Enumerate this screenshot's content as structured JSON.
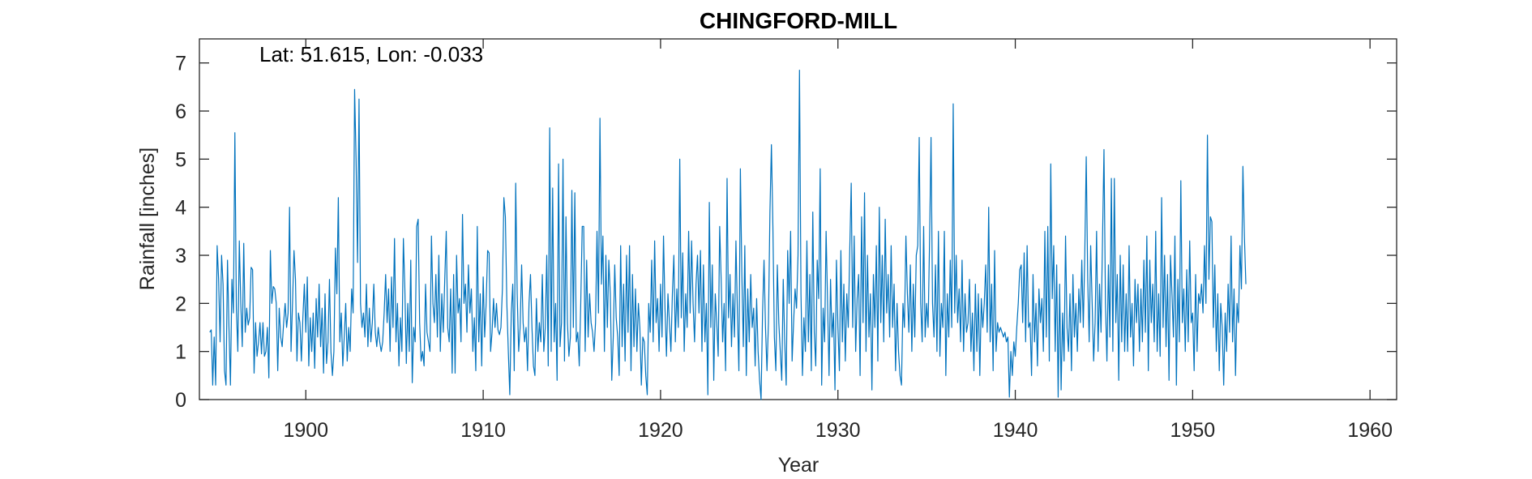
{
  "chart_data": {
    "type": "line",
    "title": "CHINGFORD-MILL",
    "xlabel": "Year",
    "ylabel": "Rainfall [inches]",
    "annotation": "Lat: 51.615, Lon: -0.033",
    "xlim": [
      1894,
      1961.5
    ],
    "ylim": [
      0,
      7.5
    ],
    "xticks": [
      1900,
      1910,
      1920,
      1930,
      1940,
      1950,
      1960
    ],
    "yticks": [
      0,
      1,
      2,
      3,
      4,
      5,
      6,
      7
    ],
    "grid": false,
    "color": "#0072BD",
    "x_start": "1894-08",
    "x_step_months": 1,
    "series": [
      {
        "values": [
          1.4,
          1.45,
          0.3,
          1.3,
          0.3,
          3.2,
          2.5,
          1.2,
          3.0,
          2.4,
          0.6,
          0.3,
          2.9,
          1.5,
          0.3,
          2.5,
          1.8,
          5.55,
          1.9,
          1.0,
          3.3,
          2.0,
          1.1,
          3.25,
          1.4,
          1.9,
          1.55,
          1.7,
          2.75,
          2.7,
          0.55,
          1.6,
          0.9,
          1.2,
          1.6,
          0.95,
          1.6,
          0.9,
          1.0,
          1.5,
          0.45,
          3.1,
          2.0,
          2.35,
          2.3,
          2.0,
          0.6,
          1.9,
          1.3,
          1.1,
          1.6,
          2.0,
          1.5,
          1.8,
          4.0,
          1.0,
          2.0,
          3.1,
          2.5,
          0.8,
          1.8,
          1.6,
          0.8,
          1.7,
          2.4,
          1.4,
          2.55,
          0.7,
          1.7,
          1.0,
          1.8,
          0.65,
          2.1,
          1.3,
          2.4,
          1.1,
          1.9,
          0.55,
          2.2,
          0.75,
          1.2,
          2.5,
          1.0,
          0.5,
          1.0,
          3.15,
          2.2,
          4.2,
          1.2,
          1.8,
          0.7,
          1.3,
          2.0,
          0.8,
          1.5,
          1.0,
          2.3,
          1.8,
          6.45,
          5.0,
          2.85,
          6.25,
          2.0,
          1.5,
          1.8,
          1.3,
          2.4,
          1.1,
          1.9,
          1.2,
          1.6,
          2.4,
          1.4,
          1.1,
          1.5,
          1.2,
          1.0,
          1.2,
          1.8,
          2.6,
          1.6,
          2.3,
          1.0,
          2.55,
          1.5,
          3.35,
          1.2,
          2.0,
          0.7,
          1.7,
          1.0,
          3.35,
          2.3,
          0.75,
          2.0,
          1.0,
          2.9,
          0.35,
          1.5,
          1.2,
          3.6,
          3.75,
          1.6,
          0.8,
          1.0,
          0.7,
          2.4,
          1.4,
          1.2,
          1.0,
          3.4,
          2.0,
          1.6,
          2.6,
          1.3,
          3.0,
          1.0,
          2.2,
          1.4,
          2.5,
          3.5,
          1.5,
          1.2,
          2.3,
          0.55,
          2.6,
          0.55,
          3.0,
          1.8,
          2.1,
          1.2,
          3.85,
          2.0,
          2.4,
          1.4,
          2.8,
          1.8,
          2.3,
          1.0,
          1.7,
          0.6,
          3.6,
          1.2,
          2.2,
          0.7,
          2.55,
          1.3,
          2.0,
          3.1,
          3.05,
          1.0,
          1.4,
          2.1,
          1.5,
          2.0,
          1.45,
          1.35,
          1.5,
          2.3,
          4.2,
          3.8,
          2.0,
          1.0,
          0.1,
          1.8,
          2.4,
          0.6,
          4.5,
          2.2,
          1.0,
          1.5,
          2.8,
          1.6,
          1.2,
          1.5,
          0.6,
          2.0,
          2.6,
          1.5,
          0.7,
          0.5,
          2.1,
          1.0,
          1.6,
          1.2,
          2.6,
          1.0,
          1.5,
          3.0,
          0.7,
          5.65,
          1.0,
          4.4,
          1.2,
          2.0,
          0.4,
          4.9,
          1.1,
          1.6,
          5.0,
          0.8,
          3.8,
          1.6,
          0.9,
          1.3,
          4.35,
          1.5,
          4.3,
          1.2,
          1.4,
          0.7,
          2.0,
          3.6,
          3.6,
          1.0,
          2.9,
          1.3,
          2.2,
          1.6,
          1.4,
          1.0,
          1.6,
          3.5,
          1.8,
          5.85,
          2.4,
          3.4,
          1.0,
          3.0,
          1.5,
          2.9,
          2.2,
          0.4,
          1.3,
          2.8,
          1.7,
          1.3,
          0.5,
          3.2,
          1.1,
          2.4,
          0.8,
          3.0,
          1.4,
          3.2,
          0.6,
          2.6,
          1.1,
          2.3,
          1.0,
          2.0,
          1.5,
          0.3,
          1.3,
          1.2,
          0.5,
          0.1,
          2.0,
          1.4,
          2.9,
          1.2,
          3.3,
          1.6,
          2.1,
          1.0,
          2.4,
          1.3,
          3.4,
          1.9,
          0.9,
          2.2,
          1.6,
          1.0,
          2.2,
          3.0,
          1.2,
          2.3,
          1.5,
          5.0,
          1.7,
          3.05,
          1.0,
          2.2,
          1.5,
          3.5,
          1.8,
          3.3,
          2.0,
          1.2,
          2.4,
          3.0,
          1.8,
          3.1,
          1.0,
          2.8,
          1.2,
          2.0,
          0.1,
          4.1,
          1.5,
          2.8,
          0.4,
          2.2,
          1.6,
          0.9,
          3.6,
          2.5,
          1.2,
          2.0,
          0.6,
          4.6,
          1.7,
          2.6,
          1.1,
          2.2,
          1.3,
          3.3,
          1.8,
          0.6,
          4.8,
          2.6,
          1.1,
          3.2,
          0.5,
          2.3,
          1.2,
          2.6,
          1.5,
          1.9,
          0.7,
          2.1,
          1.0,
          0.4,
          0.0,
          1.8,
          2.9,
          1.5,
          0.6,
          1.6,
          3.9,
          5.3,
          3.6,
          1.3,
          0.6,
          2.8,
          1.6,
          1.0,
          0.4,
          2.5,
          1.2,
          0.3,
          3.1,
          2.0,
          3.5,
          0.8,
          1.6,
          2.3,
          1.9,
          3.0,
          6.85,
          2.2,
          0.5,
          1.7,
          1.0,
          3.3,
          1.2,
          2.6,
          0.6,
          3.9,
          1.4,
          0.7,
          2.9,
          2.1,
          4.8,
          0.3,
          1.9,
          1.2,
          3.5,
          2.0,
          0.5,
          2.5,
          1.3,
          1.8,
          0.2,
          2.9,
          1.5,
          0.6,
          3.1,
          1.2,
          2.4,
          0.8,
          2.2,
          1.5,
          3.1,
          4.5,
          1.5,
          3.4,
          1.0,
          2.1,
          2.6,
          0.5,
          3.8,
          1.6,
          4.3,
          1.0,
          3.0,
          1.3,
          2.2,
          0.2,
          2.6,
          1.5,
          3.2,
          0.8,
          4.0,
          1.6,
          3.0,
          1.2,
          3.75,
          1.8,
          2.6,
          1.3,
          3.2,
          1.5,
          2.4,
          0.6,
          2.0,
          1.0,
          0.5,
          0.3,
          2.0,
          1.5,
          3.4,
          2.2,
          1.4,
          2.8,
          1.0,
          2.4,
          1.3,
          3.0,
          3.2,
          5.45,
          2.0,
          1.2,
          3.6,
          1.3,
          2.0,
          1.5,
          3.3,
          5.45,
          2.0,
          1.3,
          2.8,
          1.0,
          3.5,
          0.9,
          2.0,
          1.5,
          3.5,
          0.5,
          2.2,
          1.3,
          2.9,
          1.5,
          6.15,
          1.8,
          3.0,
          1.6,
          2.3,
          1.2,
          2.9,
          1.0,
          2.2,
          1.4,
          1.6,
          2.5,
          1.0,
          1.8,
          0.6,
          2.4,
          1.0,
          2.2,
          0.5,
          2.1,
          1.5,
          2.0,
          2.8,
          1.4,
          4.0,
          1.2,
          2.4,
          0.6,
          3.1,
          1.0,
          1.6,
          1.4,
          1.5,
          1.4,
          1.3,
          1.4,
          1.2,
          1.3,
          0.05,
          1.0,
          0.5,
          1.2,
          0.9,
          1.5,
          2.0,
          2.7,
          2.8,
          1.6,
          3.05,
          1.2,
          3.2,
          1.5,
          1.6,
          0.5,
          2.6,
          1.2,
          2.0,
          0.7,
          2.3,
          1.6,
          2.1,
          1.0,
          3.5,
          1.3,
          3.6,
          0.8,
          4.9,
          2.1,
          3.2,
          1.0,
          2.8,
          0.05,
          2.4,
          0.2,
          1.8,
          0.8,
          3.4,
          1.5,
          1.0,
          2.2,
          0.6,
          2.6,
          1.3,
          2.0,
          1.0,
          2.3,
          1.6,
          2.9,
          1.5,
          3.0,
          5.05,
          2.5,
          1.2,
          3.2,
          2.0,
          0.8,
          1.6,
          3.5,
          1.0,
          2.4,
          1.4,
          3.3,
          5.2,
          2.0,
          0.8,
          2.8,
          1.3,
          4.6,
          1.0,
          4.6,
          1.6,
          2.6,
          0.4,
          3.0,
          1.2,
          2.8,
          1.0,
          2.2,
          1.0,
          3.2,
          1.3,
          2.0,
          0.7,
          2.5,
          1.6,
          2.4,
          1.0,
          2.3,
          1.2,
          2.9,
          1.4,
          3.4,
          0.6,
          2.9,
          1.6,
          2.4,
          1.2,
          3.5,
          1.0,
          2.2,
          0.9,
          4.2,
          1.5,
          3.0,
          1.1,
          2.6,
          0.4,
          3.0,
          2.2,
          1.3,
          3.4,
          0.3,
          2.5,
          1.2,
          4.55,
          1.6,
          2.3,
          1.0,
          2.7,
          1.2,
          3.3,
          1.6,
          1.8,
          0.6,
          2.6,
          1.0,
          2.2,
          2.0,
          2.4,
          1.8,
          3.2,
          2.0,
          5.5,
          2.5,
          3.8,
          3.7,
          1.5,
          2.8,
          1.0,
          2.2,
          0.6,
          2.0,
          1.5,
          0.3,
          1.8,
          1.0,
          2.4,
          1.4,
          3.4,
          1.2,
          2.3,
          0.5,
          2.0,
          1.6,
          3.2,
          2.3,
          4.85,
          3.4,
          2.4
        ]
      }
    ]
  }
}
